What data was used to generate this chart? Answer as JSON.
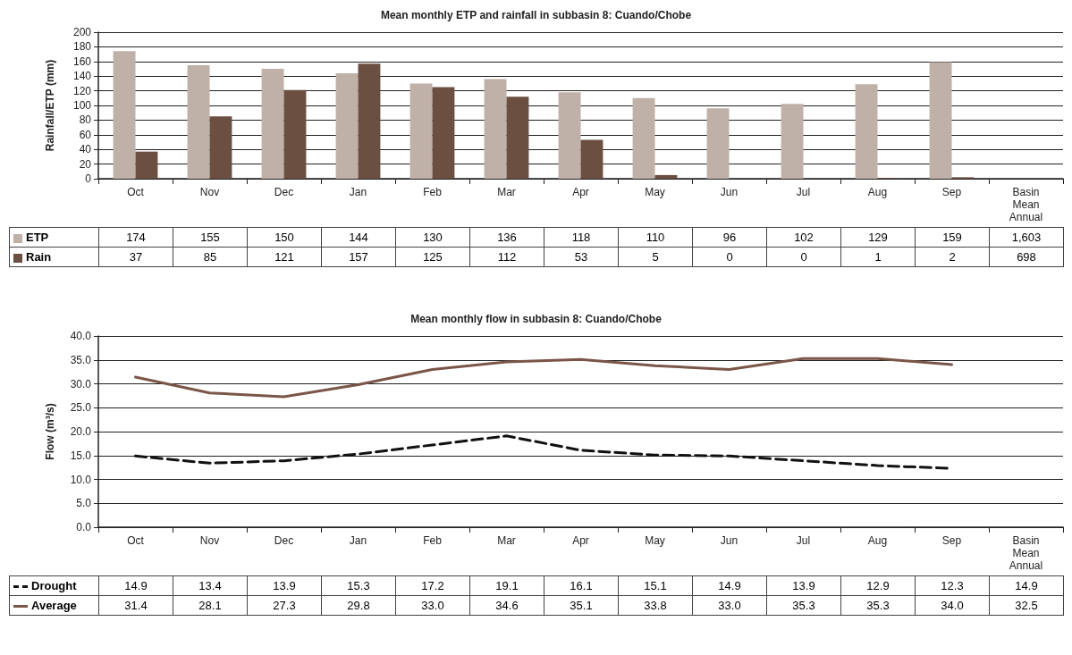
{
  "chart_data": [
    {
      "type": "bar",
      "title": "Mean monthly ETP and rainfall in subbasin 8: Cuando/Chobe",
      "ylabel": "Rainfall/ETP (mm)",
      "categories": [
        "Oct",
        "Nov",
        "Dec",
        "Jan",
        "Feb",
        "Mar",
        "Apr",
        "May",
        "Jun",
        "Jul",
        "Aug",
        "Sep",
        "Basin Mean Annual"
      ],
      "series": [
        {
          "name": "ETP",
          "color": "#bfb0a8",
          "values": [
            174,
            155,
            150,
            144,
            130,
            136,
            118,
            110,
            96,
            102,
            129,
            159,
            null
          ],
          "value_labels": [
            "174",
            "155",
            "150",
            "144",
            "130",
            "136",
            "118",
            "110",
            "96",
            "102",
            "129",
            "159",
            "1,603"
          ]
        },
        {
          "name": "Rain",
          "color": "#6b4f40",
          "values": [
            37,
            85,
            121,
            157,
            125,
            112,
            53,
            5,
            0,
            0,
            1,
            2,
            null
          ],
          "value_labels": [
            "37",
            "85",
            "121",
            "157",
            "125",
            "112",
            "53",
            "5",
            "0",
            "0",
            "1",
            "2",
            "698"
          ]
        }
      ],
      "ylim": [
        0,
        200
      ],
      "yticks": [
        0,
        20,
        40,
        60,
        80,
        100,
        120,
        140,
        160,
        180,
        200
      ],
      "grid": "y",
      "legend": "bottom"
    },
    {
      "type": "line",
      "title": "Mean monthly flow in subbasin 8: Cuando/Chobe",
      "ylabel": "Flow (m³/s)",
      "categories": [
        "Oct",
        "Nov",
        "Dec",
        "Jan",
        "Feb",
        "Mar",
        "Apr",
        "May",
        "Jun",
        "Jul",
        "Aug",
        "Sep",
        "Basin Mean Annual"
      ],
      "series": [
        {
          "name": "Drought",
          "color": "#111111",
          "line_style": "dashed",
          "values": [
            14.9,
            13.4,
            13.9,
            15.3,
            17.2,
            19.1,
            16.1,
            15.1,
            14.9,
            13.9,
            12.9,
            12.3,
            null
          ],
          "value_labels": [
            "14.9",
            "13.4",
            "13.9",
            "15.3",
            "17.2",
            "19.1",
            "16.1",
            "15.1",
            "14.9",
            "13.9",
            "12.9",
            "12.3",
            "14.9"
          ]
        },
        {
          "name": "Average",
          "color": "#7a5548",
          "line_style": "solid",
          "values": [
            31.4,
            28.1,
            27.3,
            29.8,
            33.0,
            34.6,
            35.1,
            33.8,
            33.0,
            35.3,
            35.3,
            34.0,
            null
          ],
          "value_labels": [
            "31.4",
            "28.1",
            "27.3",
            "29.8",
            "33.0",
            "34.6",
            "35.1",
            "33.8",
            "33.0",
            "35.3",
            "35.3",
            "34.0",
            "32.5"
          ]
        }
      ],
      "ylim": [
        0,
        40
      ],
      "yticks": [
        {
          "value": 0,
          "label": "0.0"
        },
        {
          "value": 5,
          "label": "5.0"
        },
        {
          "value": 10,
          "label": "10.0"
        },
        {
          "value": 15,
          "label": "15.0"
        },
        {
          "value": 20,
          "label": "20.0"
        },
        {
          "value": 25,
          "label": "25.0"
        },
        {
          "value": 30,
          "label": "30.0"
        },
        {
          "value": 35,
          "label": "35.0"
        },
        {
          "value": 40,
          "label": "40.0"
        }
      ],
      "grid": "y",
      "legend": "bottom",
      "marker": "none"
    }
  ]
}
